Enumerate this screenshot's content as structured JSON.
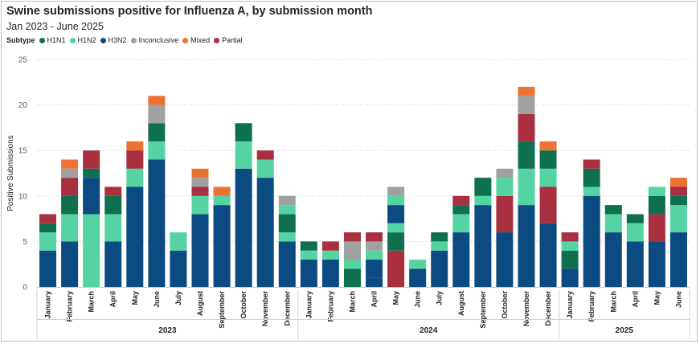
{
  "header": {
    "title": "Swine submissions positive for Influenza A, by submission month",
    "subtitle": "Jan 2023 - June 2025"
  },
  "legend": {
    "title": "Subtype",
    "items": [
      {
        "label": "H1N1",
        "color": "#0f7050"
      },
      {
        "label": "H1N2",
        "color": "#55d3a3"
      },
      {
        "label": "H3N2",
        "color": "#0c4a82"
      },
      {
        "label": "Inconclusive",
        "color": "#a0a0a0"
      },
      {
        "label": "Mixed",
        "color": "#ec7234"
      },
      {
        "label": "Partial",
        "color": "#a8303f"
      }
    ]
  },
  "chart_data": {
    "type": "bar",
    "stacked": true,
    "ylabel": "Positive Submissions",
    "ylim": [
      0,
      25
    ],
    "yticks": [
      0,
      5,
      10,
      15,
      20,
      25
    ],
    "grid": true,
    "legend_position": "top-left",
    "years": [
      {
        "label": "2023",
        "count": 12
      },
      {
        "label": "2024",
        "count": 12
      },
      {
        "label": "2025",
        "count": 6
      }
    ],
    "categories": [
      "January",
      "February",
      "March",
      "April",
      "May",
      "June",
      "July",
      "August",
      "September",
      "October",
      "November",
      "December",
      "January",
      "February",
      "March",
      "April",
      "May",
      "June",
      "July",
      "August",
      "September",
      "October",
      "November",
      "December",
      "January",
      "February",
      "March",
      "April",
      "May",
      "June"
    ],
    "series": [
      {
        "name": "H3N2",
        "color": "#0c4a82",
        "values": [
          4,
          5,
          0,
          5,
          11,
          14,
          4,
          8,
          9,
          13,
          12,
          5,
          3,
          3,
          0,
          1,
          0,
          2,
          4,
          6,
          9,
          6,
          9,
          7,
          2,
          10,
          6,
          5,
          5,
          6
        ]
      },
      {
        "name": "H1N1",
        "color": "#0f7050",
        "values": [
          0,
          0,
          0,
          0,
          0,
          0,
          0,
          0,
          0,
          0,
          0,
          0,
          0,
          0,
          2,
          0,
          0,
          0,
          0,
          0,
          0,
          0,
          0,
          0,
          2,
          0,
          0,
          0,
          0,
          0
        ]
      },
      {
        "name": "Partial",
        "color": "#a8303f",
        "values": [
          0,
          0,
          0,
          0,
          0,
          0,
          0,
          0,
          0,
          0,
          0,
          0,
          0,
          0,
          0,
          0,
          4,
          0,
          0,
          0,
          0,
          0,
          0,
          0,
          0,
          0,
          0,
          0,
          3,
          0
        ]
      },
      {
        "name": "H3N2",
        "color": "#0c4a82",
        "values": [
          0,
          0,
          0,
          0,
          0,
          0,
          0,
          0,
          0,
          0,
          0,
          0,
          0,
          0,
          0,
          2,
          0,
          0,
          0,
          0,
          0,
          0,
          0,
          0,
          0,
          0,
          0,
          0,
          0,
          0
        ]
      },
      {
        "name": "H1N1",
        "color": "#0f7050",
        "values": [
          0,
          0,
          0,
          0,
          0,
          0,
          0,
          0,
          0,
          0,
          0,
          0,
          0,
          0,
          0,
          0,
          2,
          0,
          0,
          0,
          0,
          0,
          0,
          0,
          0,
          0,
          0,
          0,
          0,
          0
        ]
      },
      {
        "name": "Partial",
        "color": "#a8303f",
        "values": [
          0,
          0,
          0,
          0,
          0,
          0,
          0,
          0,
          0,
          0,
          0,
          0,
          0,
          0,
          0,
          0,
          0,
          0,
          0,
          0,
          0,
          4,
          0,
          4,
          0,
          0,
          0,
          0,
          0,
          0
        ]
      },
      {
        "name": "H1N2",
        "color": "#55d3a3",
        "values": [
          2,
          3,
          8,
          3,
          2,
          2,
          2,
          2,
          1,
          3,
          2,
          1,
          1,
          1,
          1,
          1,
          1,
          1,
          1,
          2,
          1,
          2,
          4,
          2,
          1,
          1,
          2,
          2,
          0,
          3
        ]
      },
      {
        "name": "H3N2",
        "color": "#0c4a82",
        "values": [
          0,
          0,
          4,
          0,
          0,
          0,
          0,
          0,
          0,
          0,
          0,
          0,
          0,
          0,
          0,
          0,
          2,
          0,
          0,
          0,
          0,
          0,
          0,
          0,
          0,
          0,
          0,
          0,
          0,
          0
        ]
      },
      {
        "name": "H1N1",
        "color": "#0f7050",
        "values": [
          1,
          2,
          1,
          2,
          0,
          2,
          0,
          0,
          0,
          2,
          0,
          2,
          1,
          0,
          0,
          0,
          0,
          0,
          1,
          1,
          2,
          0,
          3,
          2,
          0,
          2,
          1,
          1,
          2,
          1
        ]
      },
      {
        "name": "Inconclusive",
        "color": "#a0a0a0",
        "values": [
          0,
          0,
          0,
          0,
          0,
          0,
          0,
          0,
          0,
          0,
          0,
          0,
          0,
          0,
          2,
          1,
          0,
          0,
          0,
          0,
          0,
          0,
          0,
          0,
          0,
          0,
          0,
          0,
          0,
          0
        ]
      },
      {
        "name": "H1N2",
        "color": "#55d3a3",
        "values": [
          0,
          0,
          0,
          0,
          0,
          0,
          0,
          0,
          0,
          0,
          0,
          1,
          0,
          0,
          0,
          0,
          1,
          0,
          0,
          0,
          0,
          0,
          0,
          0,
          0,
          0,
          0,
          0,
          1,
          0
        ]
      },
      {
        "name": "Partial",
        "color": "#a8303f",
        "values": [
          1,
          2,
          2,
          1,
          2,
          0,
          0,
          1,
          0,
          0,
          1,
          0,
          0,
          1,
          1,
          1,
          0,
          0,
          0,
          1,
          0,
          0,
          3,
          0,
          1,
          1,
          0,
          0,
          0,
          1
        ]
      },
      {
        "name": "Inconclusive",
        "color": "#a0a0a0",
        "values": [
          0,
          1,
          0,
          0,
          0,
          2,
          0,
          1,
          0,
          0,
          0,
          1,
          0,
          0,
          0,
          0,
          1,
          0,
          0,
          0,
          0,
          1,
          2,
          0,
          0,
          0,
          0,
          0,
          0,
          0
        ]
      },
      {
        "name": "Mixed",
        "color": "#ec7234",
        "values": [
          0,
          1,
          0,
          0,
          1,
          1,
          0,
          1,
          1,
          0,
          0,
          0,
          0,
          0,
          0,
          0,
          0,
          0,
          0,
          0,
          0,
          0,
          1,
          1,
          0,
          0,
          0,
          0,
          0,
          1
        ]
      }
    ]
  }
}
